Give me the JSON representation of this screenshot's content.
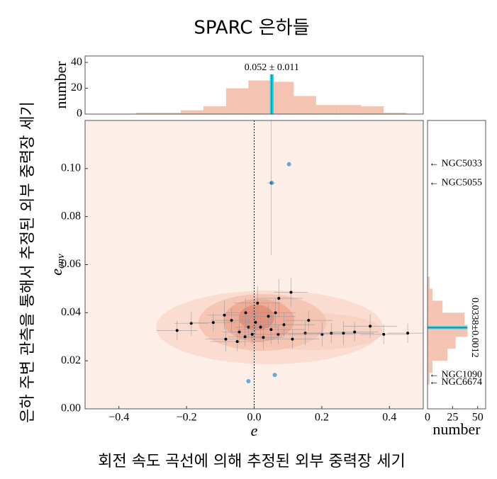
{
  "title": "SPARC 은하들",
  "caption": "회전 속도 곡선에 의해 추정된 외부 중력장 세기",
  "side_label": "은하 주변 관측을 통해서 추정된 외부 중력장 세기",
  "chart_data": [
    {
      "type": "scatter",
      "xlabel": "e",
      "ylabel": "e",
      "ylabel_subscript": "env",
      "xlim": [
        -0.5,
        0.5
      ],
      "ylim": [
        0,
        0.12
      ],
      "xticks": [
        {
          "value": -0.4,
          "label": "−0.4"
        },
        {
          "value": -0.2,
          "label": "−0.2"
        },
        {
          "value": 0,
          "label": "0.0"
        },
        {
          "value": 0.2,
          "label": "0.2"
        },
        {
          "value": 0.4,
          "label": "0.4"
        }
      ],
      "yticks": [
        {
          "value": 0,
          "label": "0.00"
        },
        {
          "value": 0.02,
          "label": "0.02"
        },
        {
          "value": 0.04,
          "label": "0.04"
        },
        {
          "value": 0.06,
          "label": "0.06"
        },
        {
          "value": 0.08,
          "label": "0.08"
        },
        {
          "value": 0.1,
          "label": "0.10"
        }
      ],
      "vline": 0,
      "color": "#000000",
      "x": [
        -0.228,
        -0.186,
        -0.121,
        -0.088,
        -0.084,
        -0.05,
        -0.044,
        -0.025,
        -0.017,
        0.004,
        0.01,
        0.042,
        0.063,
        0.071,
        0.088,
        0.109,
        0.113,
        0.151,
        0.161,
        0.201,
        0.228,
        0.264,
        0.297,
        0.343,
        0.383,
        0.454,
        0.019,
        -0.006,
        0.027,
        0.05,
        -0.027,
        -0.067,
        0.073,
        0.05
      ],
      "y": [
        0.0326,
        0.0356,
        0.0359,
        0.039,
        0.029,
        0.028,
        0.032,
        0.04,
        0.034,
        0.036,
        0.044,
        0.0385,
        0.04,
        0.031,
        0.035,
        0.0485,
        0.029,
        0.0315,
        0.0368,
        0.031,
        0.0315,
        0.0315,
        0.032,
        0.0344,
        0.031,
        0.0315,
        0.034,
        0.031,
        0.0297,
        0.033,
        0.03,
        0.0368,
        0.046,
        0.094
      ],
      "xerr": [
        0.06,
        0.05,
        0.07,
        0.05,
        0.06,
        0.08,
        0.05,
        0.06,
        0.04,
        0.05,
        0.07,
        0.08,
        0.06,
        0.07,
        0.09,
        0.05,
        0.08,
        0.09,
        0.07,
        0.1,
        0.08,
        0.09,
        0.07,
        0.08,
        0.07,
        0.06,
        0.05,
        0.04,
        0.06,
        0.1,
        0.05,
        0.06,
        0.07,
        0.012
      ],
      "yerr": [
        0.004,
        0.005,
        0.004,
        0.006,
        0.005,
        0.004,
        0.005,
        0.006,
        0.004,
        0.005,
        0.007,
        0.005,
        0.006,
        0.004,
        0.005,
        0.006,
        0.004,
        0.005,
        0.004,
        0.005,
        0.004,
        0.005,
        0.004,
        0.005,
        0.004,
        0.004,
        0.005,
        0.004,
        0.005,
        0.006,
        0.004,
        0.005,
        0.008,
        0.03
      ],
      "highlight": {
        "color": "#3a9ad9",
        "x": [
          0.103,
          0.052,
          -0.017,
          0.061
        ],
        "y": [
          0.1018,
          0.094,
          0.0115,
          0.0141
        ]
      }
    },
    {
      "type": "histogram",
      "orientation": "vertical",
      "color": "#f2b8a3",
      "xlim": [
        -0.5,
        0.5
      ],
      "ylim": [
        0,
        45
      ],
      "yticks": [
        0,
        20,
        40
      ],
      "ylabel": "number",
      "bins": [
        -0.35,
        -0.283,
        -0.217,
        -0.15,
        -0.083,
        -0.017,
        0.05,
        0.117,
        0.183,
        0.25,
        0.317,
        0.383,
        0.45
      ],
      "counts": [
        1,
        1,
        3,
        6,
        20,
        26,
        25,
        14,
        7,
        7,
        6,
        1
      ],
      "band_color": "#00e5ff",
      "annotation": {
        "text": "0.052 ± 0.011",
        "value": 0.052,
        "error": 0.011
      }
    },
    {
      "type": "histogram",
      "orientation": "horizontal",
      "color": "#f2b8a3",
      "ylim": [
        0,
        0.12
      ],
      "xlim": [
        0,
        58
      ],
      "xticks": [
        0,
        25,
        50
      ],
      "xlabel": "number",
      "bins": [
        0.01,
        0.015,
        0.02,
        0.025,
        0.03,
        0.035,
        0.04,
        0.045,
        0.05,
        0.055
      ],
      "counts": [
        2,
        5,
        20,
        28,
        40,
        37,
        15,
        5,
        2
      ],
      "band_color": "#00e5ff",
      "annotation": {
        "text": "0.0338±0.0012",
        "value": 0.0338,
        "error": 0.0012
      },
      "labels": [
        {
          "text": "← NGC5033",
          "value": 0.102
        },
        {
          "text": "← NGC5055",
          "value": 0.094
        },
        {
          "text": "← NGC1090",
          "value": 0.014
        },
        {
          "text": "← NGC6674",
          "value": 0.011
        }
      ]
    }
  ]
}
